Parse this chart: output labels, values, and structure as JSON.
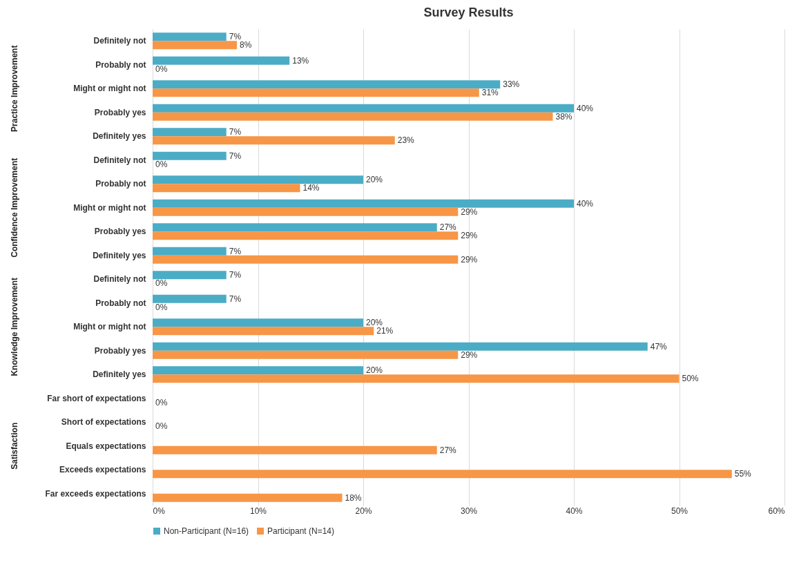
{
  "chart_data": {
    "type": "bar",
    "title": "Survey Results",
    "orientation": "horizontal",
    "grid": "x",
    "legend": "bottom",
    "categories": [
      "Definitely not",
      "Probably not",
      "Might or might not",
      "Probably yes",
      "Definitely yes",
      "Definitely not",
      "Probably not",
      "Might or might not",
      "Probably yes",
      "Definitely yes",
      "Definitely not",
      "Probably not",
      "Might or might not",
      "Probably yes",
      "Definitely yes",
      "Far short of expectations",
      "Short of expectations",
      "Equals expectations",
      "Exceeds expectations",
      "Far exceeds expectations"
    ],
    "annotations": [
      "Practice Improvement",
      "Confidence Improvement",
      "Knowledge Improvement",
      "Satisfaction"
    ],
    "xlim": [
      0,
      60
    ],
    "xticks": [
      {
        "value": 0,
        "label": "0%"
      },
      {
        "value": 10,
        "label": "10%"
      },
      {
        "value": 20,
        "label": "20%"
      },
      {
        "value": 30,
        "label": "30%"
      },
      {
        "value": 40,
        "label": "40%"
      },
      {
        "value": 50,
        "label": "50%"
      },
      {
        "value": 60,
        "label": "60%"
      }
    ],
    "series": [
      {
        "name": "Non-Participant (N=16)",
        "color": "#4bacc6",
        "values": [
          7,
          13,
          33,
          40,
          7,
          7,
          20,
          40,
          27,
          7,
          7,
          7,
          20,
          47,
          20,
          null,
          null,
          null,
          null,
          null
        ],
        "value_labels": [
          "7%",
          "13%",
          "33%",
          "40%",
          "7%",
          "7%",
          "20%",
          "40%",
          "27%",
          "7%",
          "7%",
          "7%",
          "20%",
          "47%",
          "20%",
          null,
          null,
          null,
          null,
          null
        ]
      },
      {
        "name": "Participant (N=14)",
        "color": "#f79646",
        "values": [
          8,
          0,
          31,
          38,
          23,
          0,
          14,
          29,
          29,
          29,
          0,
          0,
          21,
          29,
          50,
          0,
          0,
          27,
          55,
          18
        ],
        "value_labels": [
          "8%",
          "0%",
          "31%",
          "38%",
          "23%",
          "0%",
          "14%",
          "29%",
          "29%",
          "29%",
          "0%",
          "0%",
          "21%",
          "29%",
          "50%",
          "0%",
          "0%",
          "27%",
          "55%",
          "18%"
        ]
      }
    ]
  }
}
